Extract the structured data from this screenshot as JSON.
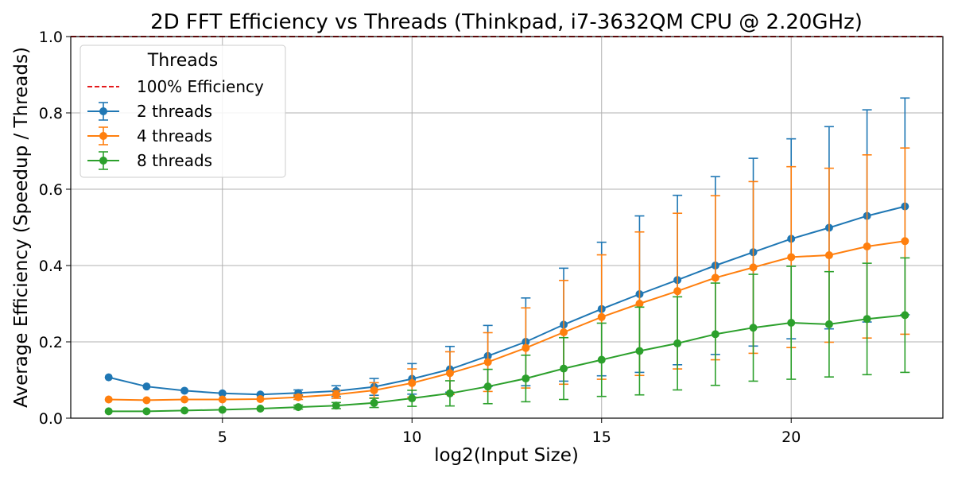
{
  "chart_data": {
    "type": "line",
    "title": "2D FFT Efficiency vs Threads (Thinkpad, i7-3632QM CPU @ 2.20GHz)",
    "xlabel": "log2(Input Size)",
    "ylabel": "Average Efficiency (Speedup / Threads)",
    "xlim": [
      1.0,
      24.0
    ],
    "ylim": [
      0.0,
      1.0
    ],
    "xticks": [
      5,
      10,
      15,
      20
    ],
    "yticks": [
      0.0,
      0.2,
      0.4,
      0.6,
      0.8,
      1.0
    ],
    "grid": true,
    "legend": {
      "title": "Threads",
      "placement": "top-left"
    },
    "reference_line": {
      "name": "100% Efficiency",
      "y": 1.0,
      "color": "#e41a1c",
      "style": "dashed"
    },
    "x": [
      2,
      3,
      4,
      5,
      6,
      7,
      8,
      9,
      10,
      11,
      12,
      13,
      14,
      15,
      16,
      17,
      18,
      19,
      20,
      21,
      22,
      23
    ],
    "series": [
      {
        "name": "2 threads",
        "color": "#1f77b4",
        "values": [
          0.107,
          0.083,
          0.072,
          0.065,
          0.062,
          0.066,
          0.071,
          0.082,
          0.103,
          0.128,
          0.163,
          0.2,
          0.245,
          0.286,
          0.325,
          0.362,
          0.4,
          0.435,
          0.47,
          0.499,
          0.53,
          0.555
        ],
        "errors": [
          0,
          0,
          0,
          0,
          0,
          0.008,
          0.014,
          0.022,
          0.04,
          0.06,
          0.08,
          0.115,
          0.148,
          0.175,
          0.205,
          0.222,
          0.233,
          0.246,
          0.262,
          0.265,
          0.278,
          0.284
        ]
      },
      {
        "name": "4 threads",
        "color": "#ff7f0e",
        "values": [
          0.049,
          0.047,
          0.049,
          0.049,
          0.05,
          0.055,
          0.062,
          0.073,
          0.092,
          0.118,
          0.147,
          0.184,
          0.225,
          0.265,
          0.3,
          0.333,
          0.368,
          0.395,
          0.422,
          0.427,
          0.45,
          0.464
        ],
        "errors": [
          0,
          0,
          0,
          0,
          0,
          0.006,
          0.01,
          0.02,
          0.037,
          0.056,
          0.077,
          0.105,
          0.136,
          0.163,
          0.188,
          0.204,
          0.215,
          0.225,
          0.237,
          0.228,
          0.24,
          0.244
        ]
      },
      {
        "name": "8 threads",
        "color": "#2ca02c",
        "values": [
          0.018,
          0.018,
          0.02,
          0.022,
          0.025,
          0.029,
          0.033,
          0.04,
          0.052,
          0.065,
          0.083,
          0.104,
          0.13,
          0.153,
          0.176,
          0.196,
          0.22,
          0.237,
          0.25,
          0.246,
          0.26,
          0.27
        ],
        "errors": [
          0,
          0,
          0,
          0,
          0,
          0.005,
          0.008,
          0.012,
          0.021,
          0.033,
          0.045,
          0.061,
          0.081,
          0.096,
          0.115,
          0.122,
          0.134,
          0.14,
          0.148,
          0.138,
          0.146,
          0.15
        ]
      }
    ]
  }
}
